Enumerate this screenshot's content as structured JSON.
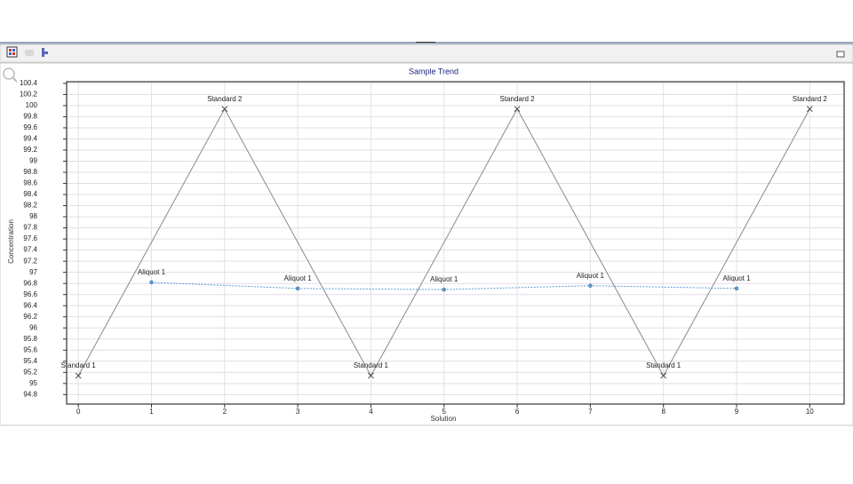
{
  "chart_data": {
    "type": "line",
    "title": "Sample Trend",
    "x_label": "Solution",
    "y_label": "Concentration",
    "xlim": [
      -0.16,
      10.47
    ],
    "xticks": [
      0,
      1,
      2,
      3,
      4,
      5,
      6,
      7,
      8,
      9,
      10
    ],
    "ylim": [
      94.63,
      100.43
    ],
    "yticks": [
      94.8,
      95,
      95.2,
      95.4,
      95.6,
      95.8,
      96,
      96.2,
      96.4,
      96.6,
      96.8,
      97,
      97.2,
      97.4,
      97.6,
      97.8,
      98,
      98.2,
      98.4,
      98.6,
      98.8,
      99,
      99.2,
      99.4,
      99.6,
      99.8,
      100,
      100.2,
      100.4
    ],
    "grid": true,
    "series": [
      {
        "color": "#8a8a8a",
        "marker": "x",
        "dashed": false,
        "x": [
          0,
          2,
          4,
          6,
          8,
          10
        ],
        "values": [
          95.14,
          99.94,
          95.14,
          99.94,
          95.14,
          99.94
        ],
        "point_labels": [
          "Standard 1",
          "Standard 2",
          "Standard 1",
          "Standard 2",
          "Standard 1",
          "Standard 2"
        ]
      },
      {
        "color": "#5b9bd5",
        "marker": "circle",
        "dashed": true,
        "x": [
          1,
          3,
          5,
          7,
          9
        ],
        "values": [
          96.82,
          96.71,
          96.69,
          96.76,
          96.71
        ],
        "point_labels": [
          "Aliquot 1",
          "Aliquot 1",
          "Aliquot 1",
          "Aliquot 1",
          "Aliquot 1"
        ]
      }
    ]
  }
}
